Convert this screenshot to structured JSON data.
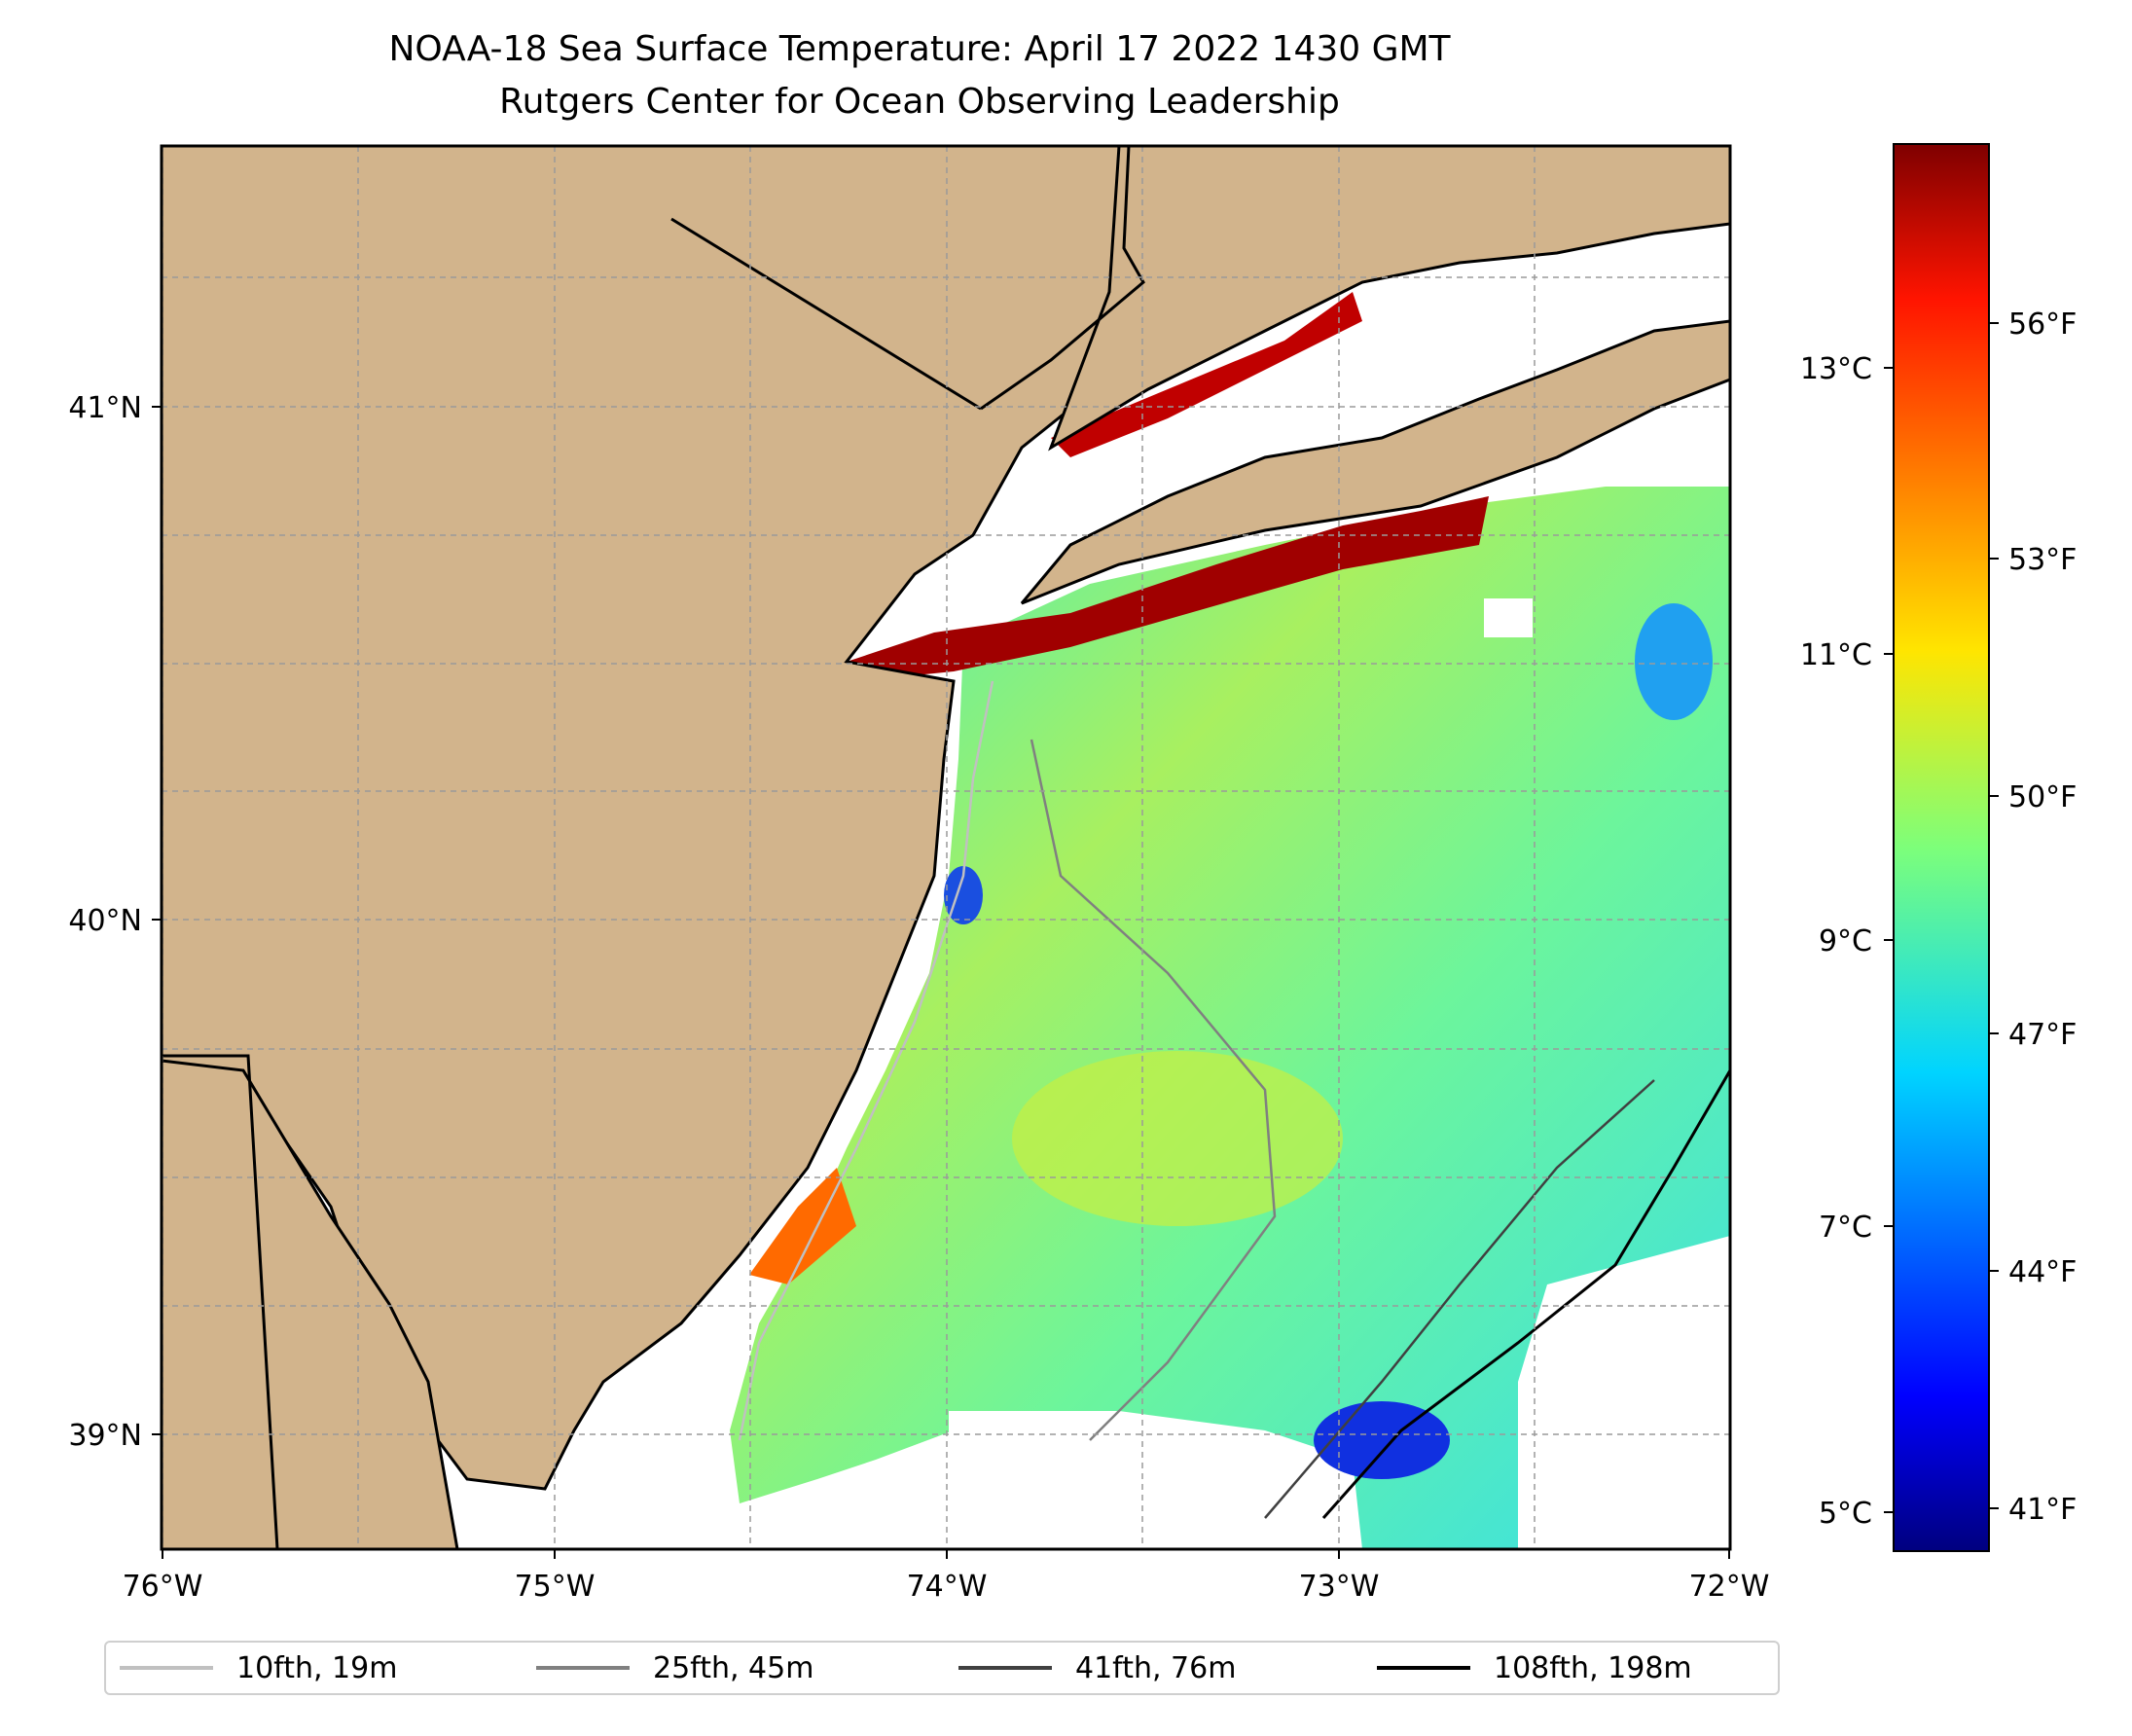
{
  "title": "NOAA-18 Sea Surface Temperature: April 17 2022 1430 GMT",
  "subtitle": "Rutgers Center for Ocean Observing Leadership",
  "map": {
    "lon_range": [
      -76,
      -72
    ],
    "lat_range": [
      38.75,
      41.5
    ],
    "land_color": "#d2b48c",
    "no_data_color": "#ffffff",
    "lon_ticks": [
      "76°W",
      "75°W",
      "74°W",
      "73°W",
      "72°W"
    ],
    "lat_ticks": [
      "41°N",
      "40°N",
      "39°N"
    ]
  },
  "colorbar": {
    "colormap": "jet",
    "celsius_ticks": [
      "13°C",
      "11°C",
      "9°C",
      "7°C",
      "5°C"
    ],
    "fahrenheit_ticks": [
      "56°F",
      "53°F",
      "50°F",
      "47°F",
      "44°F",
      "41°F"
    ],
    "range_f": [
      40.3,
      58.3
    ]
  },
  "legend": [
    {
      "label": "10fth, 19m",
      "color": "#c0c0c0"
    },
    {
      "label": "25fth, 45m",
      "color": "#808080"
    },
    {
      "label": "41fth, 76m",
      "color": "#404040"
    },
    {
      "label": "108fth, 198m",
      "color": "#000000"
    }
  ]
}
